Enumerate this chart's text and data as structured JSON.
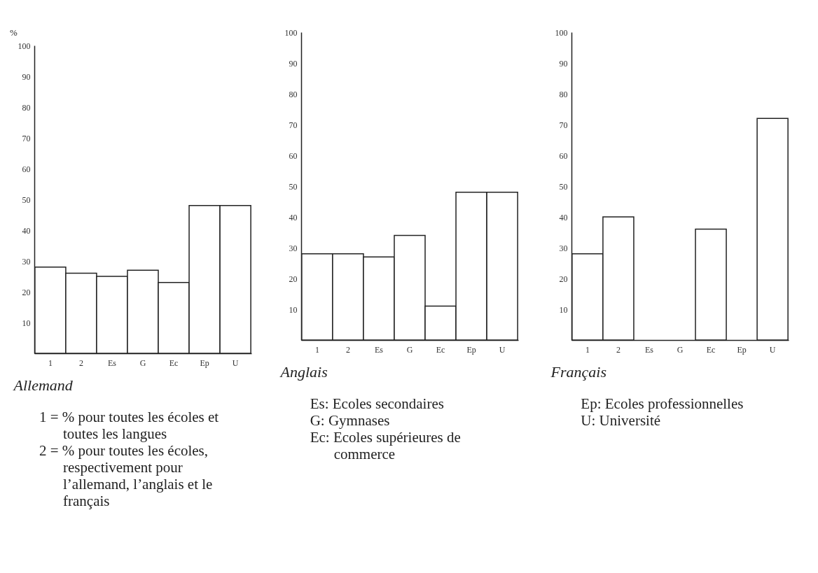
{
  "chart_data": [
    {
      "type": "bar",
      "categories": [
        "1",
        "2",
        "Es",
        "G",
        "Ec",
        "Ep",
        "U"
      ],
      "values": [
        28,
        26,
        25,
        27,
        23,
        48,
        48
      ],
      "color": "#ffffff",
      "ylim": [
        0,
        100
      ],
      "yticks": [
        10,
        20,
        30,
        40,
        50,
        60,
        70,
        80,
        90,
        100
      ],
      "grid": false,
      "ylabel": "%",
      "xlabel": "Allemand",
      "annotations": [
        "1 = % pour toutes les écoles et toutes les langues",
        "2 = % pour toutes les écoles, respectivement pour l’allemand, l’anglais et le français"
      ]
    },
    {
      "type": "bar",
      "categories": [
        "1",
        "2",
        "Es",
        "G",
        "Ec",
        "Ep",
        "U"
      ],
      "values": [
        28,
        28,
        27,
        34,
        11,
        48,
        48
      ],
      "color": "#ffffff",
      "ylim": [
        0,
        100
      ],
      "yticks": [
        10,
        20,
        30,
        40,
        50,
        60,
        70,
        80,
        90,
        100
      ],
      "grid": false,
      "xlabel": "Anglais",
      "annotations": [
        "Es: Ecoles secondaires",
        "G: Gymnases",
        "Ec: Ecoles supérieures de commerce"
      ]
    },
    {
      "type": "bar",
      "categories": [
        "1",
        "2",
        "Es",
        "G",
        "Ec",
        "Ep",
        "U"
      ],
      "values": [
        28,
        40,
        null,
        null,
        36,
        null,
        72
      ],
      "color": "#ffffff",
      "ylim": [
        0,
        100
      ],
      "yticks": [
        10,
        20,
        30,
        40,
        50,
        60,
        70,
        80,
        90,
        100
      ],
      "grid": false,
      "xlabel": "Français",
      "annotations": [
        "Ep: Ecoles professionnelles",
        "U: Université"
      ]
    }
  ]
}
